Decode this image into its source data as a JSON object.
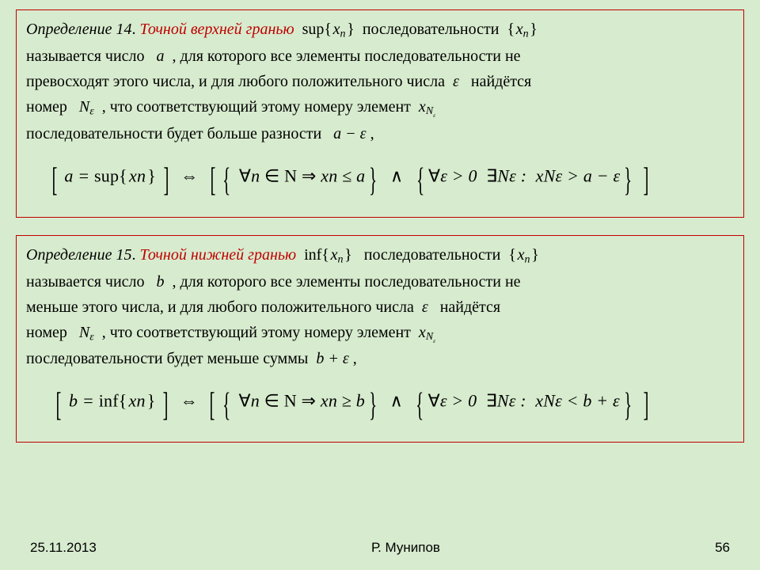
{
  "background_color": "#d7ebce",
  "box_border_color": "#c00000",
  "accent_color": "#c00000",
  "font_family": "Times New Roman",
  "font_size_body": 20,
  "font_size_formula": 22,
  "footer": {
    "date": "25.11.2013",
    "author": "Р. Мунипов",
    "page": "56"
  },
  "def14": {
    "number": "Определение 14",
    "title": "Точной верхней гранью",
    "op": "sup",
    "bound_var": "a",
    "rel_main": "≤",
    "rel_tail": ">",
    "tail_op": "−",
    "line1_tail": "последовательности",
    "line2_head": "называется число",
    "line2_tail": ", для которого все элементы последовательности не",
    "line3": "превосходят этого числа, и для любого положительного числа",
    "line3_tail": "найдётся",
    "line4_head": "номер",
    "line4_mid": ", что соответствующий этому номеру элемент",
    "line5": "последовательности будет больше разности"
  },
  "def15": {
    "number": "Определение 15",
    "title": "Точной нижней гранью",
    "op": "inf",
    "bound_var": "b",
    "rel_main": "≥",
    "rel_tail": "<",
    "tail_op": "+",
    "line1_tail": "последовательности",
    "line2_head": "называется число",
    "line2_tail": ", для которого все элементы последовательности не",
    "line3": "меньше этого числа, и для любого положительного числа",
    "line3_tail": "найдётся",
    "line4_head": "номер",
    "line4_mid": ", что соответствующий этому номеру элемент",
    "line5": "последовательности будет меньше суммы"
  },
  "sym": {
    "xn": "xₙ",
    "eps": "ε",
    "Neps": "Nε",
    "N": "N",
    "forall": "∀",
    "exists": "∃",
    "in": "∈",
    "implies": "⇒",
    "iff": "⇔",
    "and": "∧"
  }
}
